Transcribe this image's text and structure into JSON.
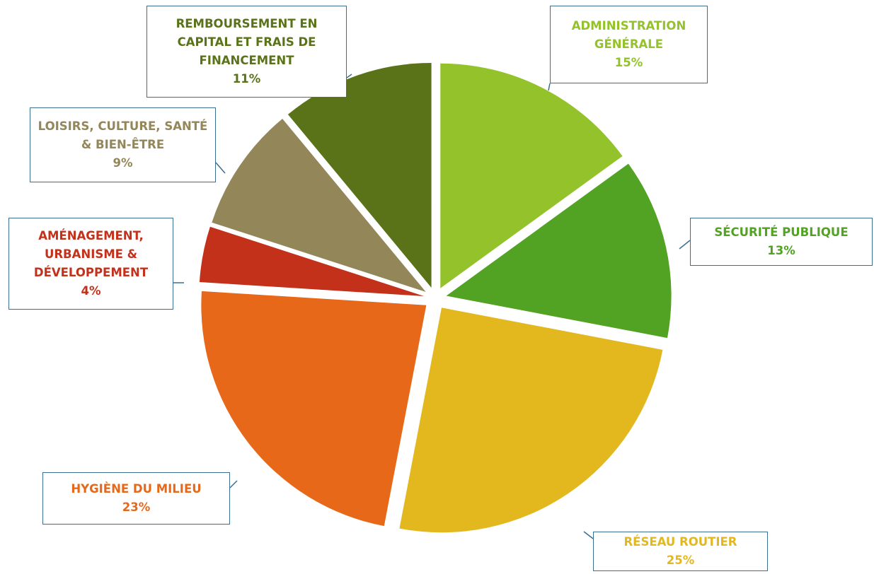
{
  "chart_data": {
    "type": "pie",
    "categories": [
      "ADMINISTRATION GÉNÉRALE",
      "SÉCURITÉ PUBLIQUE",
      "RÉSEAU ROUTIER",
      "HYGIÈNE DU MILIEU",
      "AMÉNAGEMENT, URBANISME & DÉVELOPPEMENT",
      "LOISIRS, CULTURE, SANTÉ & BIEN-ÊTRE",
      "REMBOURSEMENT EN CAPITAL ET FRAIS DE FINANCEMENT"
    ],
    "values": [
      15,
      13,
      25,
      23,
      4,
      9,
      11
    ],
    "value_labels": [
      "15%",
      "13%",
      "25%",
      "23%",
      "4%",
      "9%",
      "11%"
    ],
    "colors": [
      "#93c22a",
      "#52a323",
      "#e3b81f",
      "#e8681a",
      "#c3311a",
      "#938759",
      "#5a7319"
    ]
  }
}
